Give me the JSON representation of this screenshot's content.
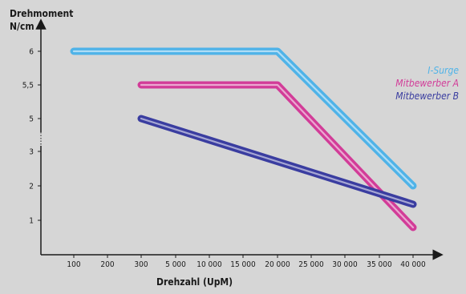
{
  "chart_data": {
    "type": "line",
    "ylabel_line1": "Drehmoment",
    "ylabel_line2": "N/cm",
    "xlabel": "Drehzahl (UpM)",
    "categories": [
      "100",
      "200",
      "300",
      "5 000",
      "10 000",
      "15 000",
      "20 000",
      "25 000",
      "30 000",
      "35 000",
      "40 000"
    ],
    "y_ticks": [
      "1",
      "2",
      "3",
      "5",
      "5,5",
      "6"
    ],
    "legend_position": "right",
    "series": [
      {
        "name": "I-Surge",
        "color": "#4fb3e8",
        "x": [
          "100",
          "20 000",
          "40 000"
        ],
        "y": [
          "6",
          "6",
          "2"
        ]
      },
      {
        "name": "Mitbewerber A",
        "color": "#d23c98",
        "x": [
          "300",
          "20 000",
          "40 000"
        ],
        "y": [
          "5,5",
          "5,5",
          "0,8"
        ]
      },
      {
        "name": "Mitbewerber B",
        "color": "#3a3da0",
        "x": [
          "300",
          "40 000"
        ],
        "y": [
          "5",
          "1,5"
        ]
      }
    ]
  }
}
